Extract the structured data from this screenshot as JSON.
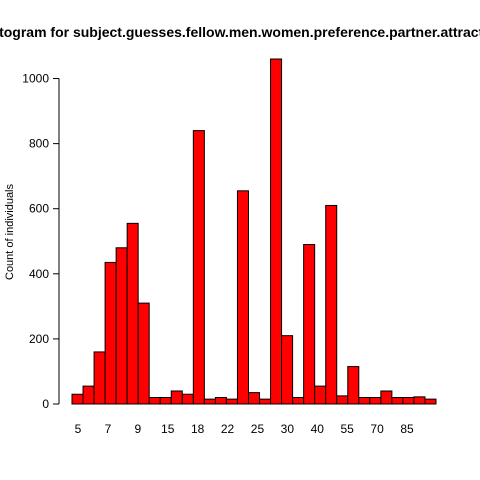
{
  "chart_data": {
    "type": "bar",
    "title": "Histogram for subject.guesses.fellow.men.women.preference.partner.attractive",
    "xlabel": "",
    "ylabel": "Count of individuals",
    "ylim": [
      0,
      1060
    ],
    "yticks": [
      0,
      200,
      400,
      600,
      800,
      1000
    ],
    "x_tick_labels": [
      "5",
      "7",
      "9",
      "15",
      "18",
      "22",
      "25",
      "30",
      "40",
      "55",
      "70",
      "85"
    ],
    "values": [
      30,
      55,
      160,
      435,
      480,
      555,
      310,
      20,
      20,
      40,
      30,
      840,
      15,
      20,
      15,
      655,
      35,
      15,
      1060,
      210,
      20,
      490,
      55,
      610,
      25,
      115,
      20,
      20,
      40,
      20,
      20,
      22,
      15
    ],
    "bar_color": "#ff0000",
    "bar_outline": "#000000",
    "grid": false,
    "legend": "none"
  }
}
